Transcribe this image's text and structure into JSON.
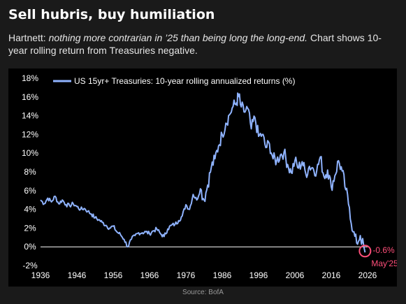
{
  "header": {
    "title": "Sell hubris, buy humiliation",
    "subtitle_lead": "Hartnett:",
    "subtitle_emphasis": "nothing more contrarian in ’25 than being long the long-end.",
    "subtitle_tail": "Chart shows 10-year rolling return from Treasuries negative."
  },
  "source": "Source: BofA",
  "colors": {
    "line": "#8fb3ff",
    "highlight": "#ff4f7a",
    "axis_text": "#ffffff",
    "background": "#000000"
  },
  "chart_data": {
    "type": "line",
    "ytick_labels": [
      "18%",
      "16%",
      "14%",
      "12%",
      "10%",
      "8%",
      "6%",
      "4%",
      "2%",
      "0%",
      "-2%"
    ],
    "xtick_labels": [
      "1936",
      "1946",
      "1956",
      "1966",
      "1976",
      "1986",
      "1996",
      "2006",
      "2016",
      "2026"
    ],
    "xlim": [
      1936,
      2026
    ],
    "ylim": [
      -2,
      18
    ],
    "grid": false,
    "legend_position": "top-left",
    "series": [
      {
        "name": "US 15yr+ Treasuries: 10-year rolling annualized returns (%)",
        "x": [
          1936,
          1937,
          1938,
          1939,
          1940,
          1941,
          1942,
          1943,
          1944,
          1945,
          1946,
          1947,
          1948,
          1949,
          1950,
          1951,
          1952,
          1953,
          1954,
          1955,
          1956,
          1957,
          1958,
          1959,
          1960,
          1961,
          1962,
          1963,
          1964,
          1965,
          1966,
          1967,
          1968,
          1969,
          1970,
          1971,
          1972,
          1973,
          1974,
          1975,
          1976,
          1977,
          1978,
          1979,
          1980,
          1981,
          1982,
          1983,
          1984,
          1985,
          1986,
          1987,
          1988,
          1989,
          1990,
          1990.5,
          1991,
          1992,
          1993,
          1994,
          1995,
          1996,
          1997,
          1998,
          1999,
          2000,
          2001,
          2002,
          2003,
          2004,
          2005,
          2006,
          2007,
          2008,
          2009,
          2010,
          2011,
          2012,
          2013,
          2014,
          2015,
          2016,
          2017,
          2018,
          2019,
          2020,
          2021,
          2022,
          2023,
          2024,
          2025.3
        ],
        "y": [
          5.0,
          4.6,
          5.2,
          4.8,
          5.4,
          4.6,
          5.0,
          4.5,
          4.4,
          4.6,
          4.3,
          4.0,
          4.1,
          3.8,
          3.5,
          3.1,
          2.9,
          2.6,
          2.3,
          2.0,
          2.2,
          1.6,
          1.3,
          0.8,
          0.0,
          0.8,
          1.2,
          1.5,
          1.5,
          1.6,
          1.4,
          1.7,
          1.9,
          1.4,
          1.1,
          1.9,
          2.3,
          2.4,
          2.8,
          3.3,
          4.5,
          4.0,
          5.6,
          5.0,
          6.2,
          5.0,
          6.6,
          8.5,
          9.4,
          10.8,
          12.0,
          13.2,
          14.1,
          15.0,
          15.4,
          16.3,
          15.2,
          14.4,
          14.8,
          12.6,
          13.8,
          11.8,
          12.0,
          10.6,
          11.0,
          9.4,
          9.2,
          9.8,
          10.1,
          8.8,
          7.9,
          9.2,
          8.4,
          9.1,
          7.8,
          8.6,
          8.4,
          8.1,
          9.6,
          7.5,
          8.2,
          6.4,
          7.6,
          9.2,
          8.1,
          6.1,
          4.2,
          1.6,
          0.4,
          1.2,
          -0.6
        ]
      }
    ],
    "annotation": {
      "x": 2025.3,
      "y": -0.6,
      "value_label": "-0.6%",
      "date_label": "May'25"
    }
  }
}
